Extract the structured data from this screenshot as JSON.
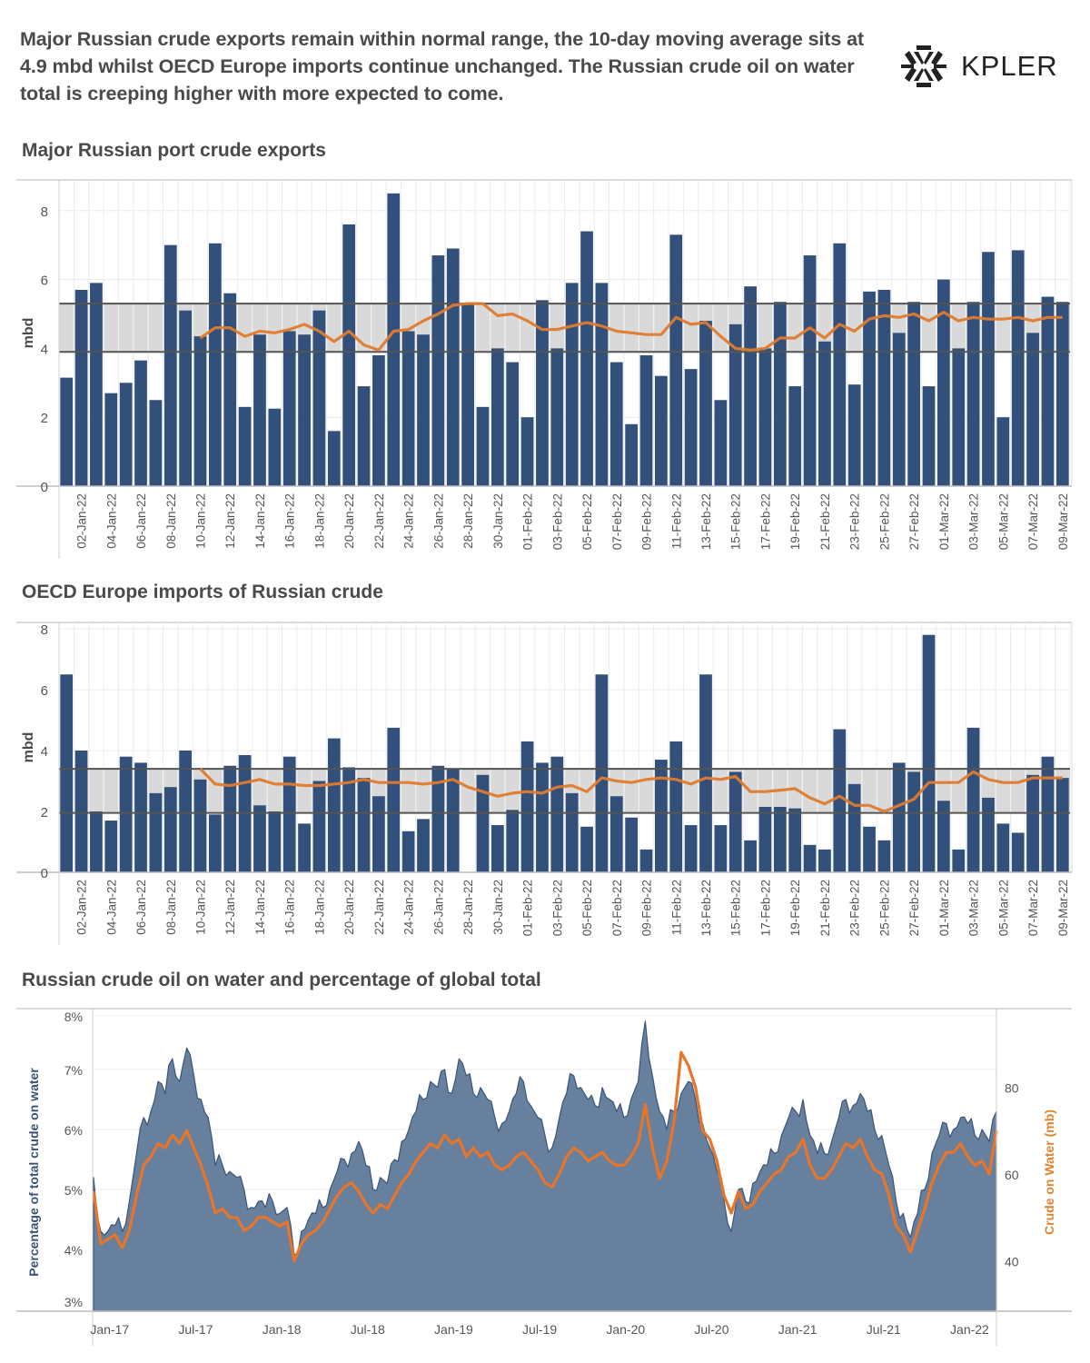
{
  "header": {
    "headline": "Major Russian crude exports remain within normal range, the 10-day moving average sits at 4.9 mbd whilst OECD Europe imports continue unchanged. The Russian crude oil on water total is creeping higher with more expected to come.",
    "logo_text": "KPLER"
  },
  "colors": {
    "bar": "#33507a",
    "moving_average": "#e07b2e",
    "band": "#d9d9d9",
    "band_line": "#555555",
    "area": "#66809e",
    "area_edge": "#3b5478",
    "crude_line": "#e8752a"
  },
  "chart_data": [
    {
      "type": "bar",
      "title": "Major Russian port crude exports",
      "ylabel": "mbd",
      "xlabel": "",
      "ylim": [
        0,
        8.8
      ],
      "yticks": [
        0,
        2,
        4,
        6,
        8
      ],
      "grid": true,
      "categories": [
        "01-Jan-22",
        "02-Jan-22",
        "03-Jan-22",
        "04-Jan-22",
        "05-Jan-22",
        "06-Jan-22",
        "07-Jan-22",
        "08-Jan-22",
        "09-Jan-22",
        "10-Jan-22",
        "11-Jan-22",
        "12-Jan-22",
        "13-Jan-22",
        "14-Jan-22",
        "15-Jan-22",
        "16-Jan-22",
        "17-Jan-22",
        "18-Jan-22",
        "19-Jan-22",
        "20-Jan-22",
        "21-Jan-22",
        "22-Jan-22",
        "23-Jan-22",
        "24-Jan-22",
        "25-Jan-22",
        "26-Jan-22",
        "27-Jan-22",
        "28-Jan-22",
        "29-Jan-22",
        "30-Jan-22",
        "31-Jan-22",
        "01-Feb-22",
        "02-Feb-22",
        "03-Feb-22",
        "04-Feb-22",
        "05-Feb-22",
        "06-Feb-22",
        "07-Feb-22",
        "08-Feb-22",
        "09-Feb-22",
        "10-Feb-22",
        "11-Feb-22",
        "12-Feb-22",
        "13-Feb-22",
        "14-Feb-22",
        "15-Feb-22",
        "16-Feb-22",
        "17-Feb-22",
        "18-Feb-22",
        "19-Feb-22",
        "20-Feb-22",
        "21-Feb-22",
        "22-Feb-22",
        "23-Feb-22",
        "24-Feb-22",
        "25-Feb-22",
        "26-Feb-22",
        "27-Feb-22",
        "28-Feb-22",
        "01-Mar-22",
        "02-Mar-22",
        "03-Mar-22",
        "04-Mar-22",
        "05-Mar-22",
        "06-Mar-22",
        "07-Mar-22",
        "08-Mar-22",
        "09-Mar-22"
      ],
      "tick_every": 2,
      "tick_offset": 1,
      "values": [
        3.15,
        5.7,
        5.9,
        2.7,
        3.0,
        3.65,
        2.5,
        7.0,
        5.1,
        4.35,
        7.05,
        5.6,
        2.3,
        4.4,
        2.25,
        4.5,
        4.4,
        5.1,
        1.6,
        7.6,
        2.9,
        3.8,
        8.5,
        4.5,
        4.4,
        6.7,
        6.9,
        5.3,
        2.3,
        4.0,
        3.6,
        2.0,
        5.4,
        4.0,
        5.9,
        7.4,
        5.9,
        3.6,
        1.8,
        3.8,
        3.2,
        7.3,
        3.4,
        4.8,
        2.5,
        4.7,
        5.8,
        4.0,
        5.35,
        2.9,
        6.7,
        4.2,
        7.05,
        2.95,
        5.65,
        5.7,
        4.45,
        5.35,
        2.9,
        6.0,
        4.0,
        5.35,
        6.8,
        2.0,
        6.85,
        4.45,
        5.5,
        5.35
      ],
      "moving_average": {
        "name": "10-day moving average",
        "start_index": 9,
        "values": [
          4.3,
          4.6,
          4.6,
          4.35,
          4.5,
          4.45,
          4.55,
          4.7,
          4.5,
          4.2,
          4.5,
          4.1,
          3.95,
          4.5,
          4.55,
          4.8,
          5.0,
          5.25,
          5.3,
          5.3,
          4.95,
          5.0,
          4.8,
          4.55,
          4.55,
          4.65,
          4.75,
          4.65,
          4.5,
          4.45,
          4.4,
          4.4,
          4.9,
          4.7,
          4.75,
          4.35,
          4.0,
          3.95,
          4.0,
          4.3,
          4.3,
          4.6,
          4.3,
          4.7,
          4.5,
          4.85,
          4.95,
          4.9,
          5.0,
          4.8,
          5.05,
          4.8,
          4.9,
          4.85,
          4.85,
          4.9,
          4.8,
          4.9,
          4.9
        ]
      },
      "normal_range": [
        3.9,
        5.3
      ]
    },
    {
      "type": "bar",
      "title": "OECD Europe imports of Russian crude",
      "ylabel": "mbd",
      "xlabel": "",
      "ylim": [
        0,
        8
      ],
      "yticks": [
        0,
        2,
        4,
        6,
        8
      ],
      "grid": true,
      "categories": [
        "01-Jan-22",
        "02-Jan-22",
        "03-Jan-22",
        "04-Jan-22",
        "05-Jan-22",
        "06-Jan-22",
        "07-Jan-22",
        "08-Jan-22",
        "09-Jan-22",
        "10-Jan-22",
        "11-Jan-22",
        "12-Jan-22",
        "13-Jan-22",
        "14-Jan-22",
        "15-Jan-22",
        "16-Jan-22",
        "17-Jan-22",
        "18-Jan-22",
        "19-Jan-22",
        "20-Jan-22",
        "21-Jan-22",
        "22-Jan-22",
        "23-Jan-22",
        "24-Jan-22",
        "25-Jan-22",
        "26-Jan-22",
        "27-Jan-22",
        "28-Jan-22",
        "29-Jan-22",
        "30-Jan-22",
        "31-Jan-22",
        "01-Feb-22",
        "02-Feb-22",
        "03-Feb-22",
        "04-Feb-22",
        "05-Feb-22",
        "06-Feb-22",
        "07-Feb-22",
        "08-Feb-22",
        "09-Feb-22",
        "10-Feb-22",
        "11-Feb-22",
        "12-Feb-22",
        "13-Feb-22",
        "14-Feb-22",
        "15-Feb-22",
        "16-Feb-22",
        "17-Feb-22",
        "18-Feb-22",
        "19-Feb-22",
        "20-Feb-22",
        "21-Feb-22",
        "22-Feb-22",
        "23-Feb-22",
        "24-Feb-22",
        "25-Feb-22",
        "26-Feb-22",
        "27-Feb-22",
        "28-Feb-22",
        "01-Mar-22",
        "02-Mar-22",
        "03-Mar-22",
        "04-Mar-22",
        "05-Mar-22",
        "06-Mar-22",
        "07-Mar-22",
        "08-Mar-22",
        "09-Mar-22"
      ],
      "tick_every": 2,
      "tick_offset": 1,
      "values": [
        6.5,
        4.0,
        2.0,
        1.7,
        3.8,
        3.6,
        2.6,
        2.8,
        4.0,
        3.05,
        1.9,
        3.5,
        3.85,
        2.2,
        2.0,
        3.8,
        1.6,
        3.0,
        4.4,
        3.45,
        3.1,
        2.5,
        4.75,
        1.35,
        1.75,
        3.5,
        3.4,
        0,
        3.2,
        1.55,
        2.05,
        4.3,
        3.6,
        3.8,
        2.6,
        1.5,
        6.5,
        2.5,
        1.8,
        0.75,
        3.7,
        4.3,
        1.55,
        6.5,
        1.55,
        3.3,
        1.05,
        2.15,
        2.15,
        2.1,
        0.9,
        0.75,
        4.7,
        2.9,
        1.5,
        1.05,
        3.6,
        3.3,
        7.8,
        2.35,
        0.75,
        4.75,
        2.45,
        1.6,
        1.3,
        3.2,
        3.8,
        3.1
      ],
      "moving_average": {
        "name": "10-day moving average",
        "start_index": 9,
        "values": [
          3.4,
          2.9,
          2.85,
          2.95,
          3.05,
          2.9,
          2.9,
          2.85,
          2.85,
          2.9,
          2.95,
          3.05,
          2.95,
          2.95,
          2.95,
          2.9,
          2.95,
          3.05,
          2.8,
          2.65,
          2.5,
          2.6,
          2.65,
          2.6,
          2.8,
          2.85,
          2.65,
          3.1,
          3.0,
          2.95,
          3.05,
          3.1,
          3.05,
          2.9,
          3.1,
          3.05,
          3.15,
          2.65,
          2.65,
          2.7,
          2.75,
          2.45,
          2.25,
          2.5,
          2.2,
          2.2,
          2.0,
          2.2,
          2.4,
          2.95,
          2.95,
          2.95,
          3.3,
          3.05,
          2.95,
          2.95,
          3.1,
          3.1,
          3.1
        ]
      },
      "normal_range": [
        1.95,
        3.4
      ]
    },
    {
      "type": "area",
      "title": "Russian crude oil on water and percentage of global total",
      "ylabel": "Percentage of total crude on water",
      "y2label": "Crude on Water (mb)",
      "yticks": [
        "3%",
        "4%",
        "5%",
        "6%",
        "7%",
        "8%"
      ],
      "y2ticks": [
        40,
        60,
        80
      ],
      "xticks": [
        "Jan-17",
        "Jul-17",
        "Jan-18",
        "Jul-18",
        "Jan-19",
        "Jul-19",
        "Jan-20",
        "Jul-20",
        "Jan-21",
        "Jul-21",
        "Jan-22"
      ],
      "x_start": "Dec-16",
      "x_end": "Mar-22",
      "x_step": "half-month",
      "series": [
        {
          "name": "Percentage of total crude on water",
          "axis": "left",
          "style": "area",
          "values": [
            5.2,
            4.3,
            4.3,
            4.4,
            4.3,
            4.8,
            5.6,
            6.2,
            6.3,
            6.8,
            6.6,
            7.2,
            6.8,
            7.4,
            6.9,
            6.5,
            6.2,
            5.4,
            5.4,
            5.3,
            5.2,
            5.0,
            4.7,
            4.8,
            4.7,
            4.8,
            4.6,
            4.7,
            3.9,
            4.3,
            4.5,
            4.6,
            4.7,
            5.0,
            5.3,
            5.5,
            5.6,
            5.8,
            5.4,
            5.0,
            5.2,
            5.1,
            5.5,
            5.8,
            6.0,
            6.3,
            6.5,
            6.8,
            6.7,
            7.0,
            6.6,
            7.2,
            6.9,
            6.6,
            6.7,
            6.5,
            6.2,
            6.1,
            6.3,
            6.6,
            6.8,
            6.4,
            6.2,
            5.9,
            5.7,
            6.2,
            6.6,
            6.9,
            6.7,
            6.5,
            6.4,
            6.7,
            6.5,
            6.3,
            6.2,
            6.5,
            6.8,
            7.9,
            6.9,
            6.3,
            6.0,
            6.3,
            6.6,
            6.8,
            6.5,
            6.1,
            5.7,
            5.3,
            4.8,
            4.3,
            5.0,
            4.8,
            5.1,
            5.3,
            5.4,
            5.6,
            5.9,
            6.2,
            6.3,
            6.5,
            5.9,
            5.6,
            5.6,
            5.8,
            6.2,
            6.5,
            6.4,
            6.6,
            6.3,
            6.0,
            5.9,
            5.4,
            4.8,
            4.6,
            4.2,
            4.6,
            5.0,
            5.6,
            5.9,
            6.1,
            6.0,
            6.2,
            6.1,
            5.9,
            6.0,
            5.8,
            6.3
          ]
        },
        {
          "name": "Crude on Water (mb)",
          "axis": "right",
          "style": "line",
          "values": [
            56,
            44,
            45,
            46,
            43,
            47,
            55,
            62,
            64,
            67,
            66,
            69,
            67,
            70,
            66,
            62,
            57,
            51,
            52,
            50,
            50,
            47,
            48,
            50,
            50,
            49,
            48,
            49,
            40,
            44,
            46,
            47,
            49,
            52,
            55,
            57,
            58,
            56,
            53,
            51,
            53,
            52,
            55,
            58,
            60,
            63,
            65,
            67,
            66,
            69,
            67,
            68,
            64,
            66,
            64,
            65,
            62,
            61,
            62,
            64,
            65,
            63,
            61,
            58,
            57,
            60,
            64,
            66,
            65,
            63,
            64,
            65,
            63,
            62,
            62,
            64,
            67,
            76,
            66,
            59,
            63,
            72,
            88,
            85,
            80,
            70,
            68,
            63,
            55,
            51,
            56,
            52,
            53,
            56,
            58,
            60,
            61,
            64,
            65,
            68,
            62,
            59,
            59,
            61,
            64,
            67,
            66,
            68,
            64,
            61,
            60,
            55,
            48,
            46,
            42,
            47,
            52,
            58,
            62,
            65,
            65,
            67,
            64,
            62,
            63,
            60,
            70
          ]
        }
      ]
    }
  ]
}
